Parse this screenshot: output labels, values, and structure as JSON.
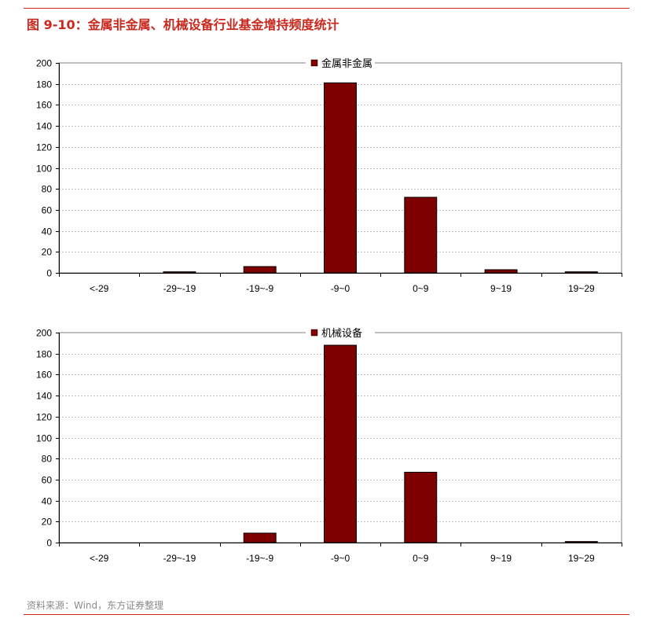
{
  "figure": {
    "title": "图 9-10：金属非金属、机械设备行业基金增持频度统计",
    "source": "资料来源：Wind，东方证券整理"
  },
  "colors": {
    "bar": "#7f0000",
    "accent": "#c8281e",
    "grid": "#bfbfbf"
  },
  "chart_data": [
    {
      "type": "bar",
      "title": "",
      "xlabel": "",
      "ylabel": "",
      "categories": [
        "<-29",
        "-29~-19",
        "-19~-9",
        "-9~0",
        "0~9",
        "9~19",
        "19~29"
      ],
      "series": [
        {
          "name": "金属非金属",
          "values": [
            0,
            1,
            6,
            181,
            72,
            3,
            1
          ]
        }
      ],
      "ylim": [
        0,
        200
      ],
      "yticks": [
        0,
        20,
        40,
        60,
        80,
        100,
        120,
        140,
        160,
        180,
        200
      ],
      "grid": true,
      "legend": "top-center"
    },
    {
      "type": "bar",
      "title": "",
      "xlabel": "",
      "ylabel": "",
      "categories": [
        "<-29",
        "-29~-19",
        "-19~-9",
        "-9~0",
        "0~9",
        "9~19",
        "19~29"
      ],
      "series": [
        {
          "name": "机械设备",
          "values": [
            0,
            0,
            9,
            188,
            67,
            0,
            1
          ]
        }
      ],
      "ylim": [
        0,
        200
      ],
      "yticks": [
        0,
        20,
        40,
        60,
        80,
        100,
        120,
        140,
        160,
        180,
        200
      ],
      "grid": true,
      "legend": "top-center"
    }
  ]
}
